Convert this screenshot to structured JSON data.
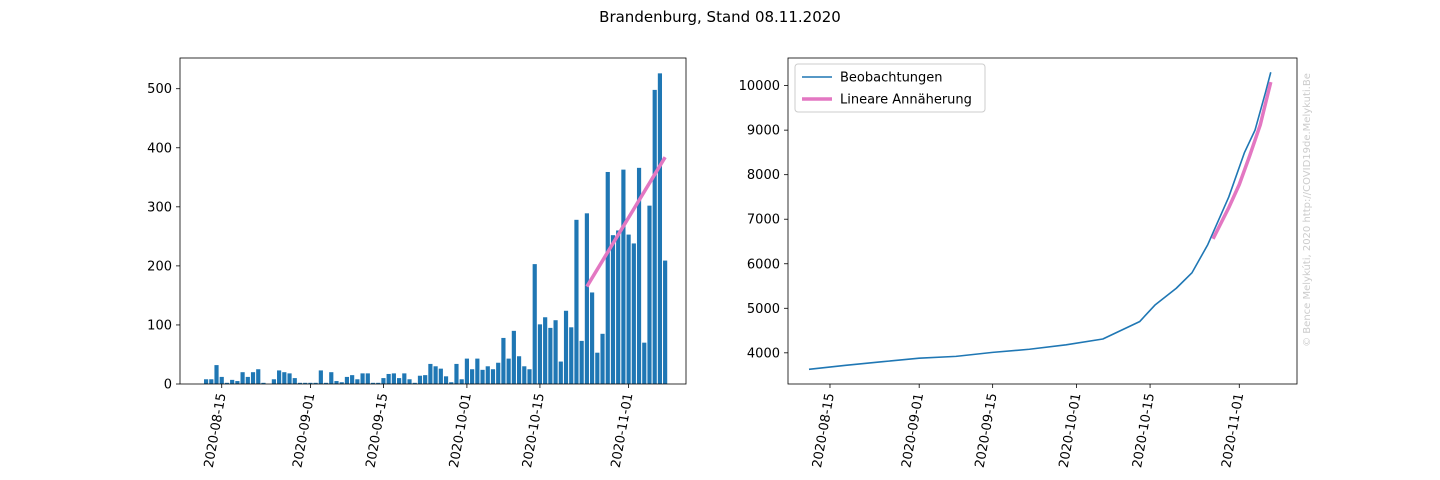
{
  "title": "Brandenburg, Stand 08.11.2020",
  "watermark": "© Bence Melykúti, 2020  http://COVID19de.Melykuti.Be",
  "colors": {
    "bars": "#1f77b4",
    "line": "#1f77b4",
    "fit": "#e377c2",
    "axis": "#000000"
  },
  "chart_data": [
    {
      "type": "bar",
      "title": "",
      "xlabel": "",
      "ylabel": "",
      "date_start": "2020-08-12",
      "xlim": [
        "2020-08-07",
        "2020-11-12"
      ],
      "ylim": [
        0,
        552
      ],
      "xticks": [
        "2020-08-15",
        "2020-09-01",
        "2020-09-15",
        "2020-10-01",
        "2020-10-15",
        "2020-11-01"
      ],
      "yticks": [
        0,
        100,
        200,
        300,
        400,
        500
      ],
      "grid": false,
      "values": [
        8,
        8,
        32,
        12,
        2,
        7,
        5,
        20,
        12,
        20,
        25,
        2,
        0,
        8,
        23,
        20,
        18,
        10,
        2,
        2,
        2,
        2,
        23,
        2,
        20,
        5,
        3,
        12,
        15,
        8,
        18,
        18,
        2,
        2,
        10,
        17,
        18,
        10,
        18,
        8,
        2,
        14,
        15,
        34,
        30,
        26,
        13,
        3,
        34,
        8,
        43,
        25,
        43,
        24,
        30,
        25,
        36,
        78,
        43,
        90,
        47,
        30,
        25,
        203,
        101,
        113,
        95,
        108,
        38,
        124,
        96,
        278,
        73,
        289,
        155,
        53,
        85,
        359,
        252,
        260,
        363,
        253,
        238,
        366,
        70,
        302,
        498,
        526,
        209
      ],
      "series": [
        {
          "name": "",
          "type": "line",
          "x": [
            "2020-10-24",
            "2020-11-08"
          ],
          "y": [
            165,
            384
          ]
        }
      ]
    },
    {
      "type": "line",
      "title": "",
      "xlabel": "",
      "ylabel": "",
      "xlim": [
        "2020-08-07",
        "2020-11-12"
      ],
      "ylim": [
        3300,
        10620
      ],
      "xticks": [
        "2020-08-15",
        "2020-09-01",
        "2020-09-15",
        "2020-10-01",
        "2020-10-15",
        "2020-11-01"
      ],
      "yticks": [
        4000,
        5000,
        6000,
        7000,
        8000,
        9000,
        10000
      ],
      "grid": false,
      "legend": "top-left",
      "series": [
        {
          "name": "Beobachtungen",
          "x": [
            "2020-08-11",
            "2020-08-18",
            "2020-08-25",
            "2020-09-01",
            "2020-09-08",
            "2020-09-15",
            "2020-09-22",
            "2020-09-29",
            "2020-10-06",
            "2020-10-13",
            "2020-10-16",
            "2020-10-20",
            "2020-10-23",
            "2020-10-26",
            "2020-10-30",
            "2020-11-02",
            "2020-11-04",
            "2020-11-06",
            "2020-11-07"
          ],
          "y": [
            3630,
            3720,
            3800,
            3880,
            3920,
            4010,
            4080,
            4180,
            4310,
            4700,
            5080,
            5450,
            5800,
            6430,
            7500,
            8500,
            9000,
            9850,
            10300
          ]
        },
        {
          "name": "Lineare Annäherung",
          "x": [
            "2020-10-27",
            "2020-10-30",
            "2020-11-01",
            "2020-11-03",
            "2020-11-05",
            "2020-11-07"
          ],
          "y": [
            6560,
            7260,
            7780,
            8430,
            9120,
            10080
          ]
        }
      ]
    }
  ]
}
